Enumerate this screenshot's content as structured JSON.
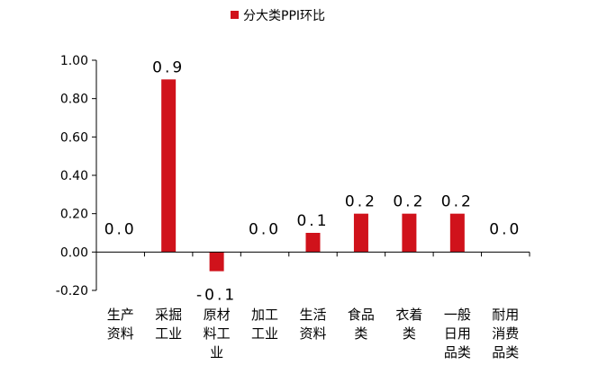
{
  "chart_data": {
    "type": "bar",
    "legend": {
      "label": "分大类PPI环比",
      "color": "#d0121b",
      "position": "top-center"
    },
    "categories": [
      "生产资料",
      "采掘工业",
      "原材料工业",
      "加工工业",
      "生活资料",
      "食品类",
      "衣着类",
      "一般日用品类",
      "耐用消费品类"
    ],
    "category_lines": [
      [
        "生产",
        "资料"
      ],
      [
        "采掘",
        "工业"
      ],
      [
        "原材",
        "料工",
        "业"
      ],
      [
        "加工",
        "工业"
      ],
      [
        "生活",
        "资料"
      ],
      [
        "食品",
        "类"
      ],
      [
        "衣着",
        "类"
      ],
      [
        "一般",
        "日用",
        "品类"
      ],
      [
        "耐用",
        "消费",
        "品类"
      ]
    ],
    "series": [
      {
        "name": "分大类PPI环比",
        "values": [
          0.0,
          0.9,
          -0.1,
          0.0,
          0.1,
          0.2,
          0.2,
          0.2,
          0.0
        ]
      }
    ],
    "data_labels": [
      "0.0",
      "0.9",
      "-0.1",
      "0.0",
      "0.1",
      "0.2",
      "0.2",
      "0.2",
      "0.0"
    ],
    "y_ticks": [
      "1.00",
      "0.80",
      "0.60",
      "0.40",
      "0.20",
      "0.00",
      "-0.20"
    ],
    "ylim": [
      -0.2,
      1.0
    ],
    "grid": false,
    "bar_color": "#d0121b"
  }
}
